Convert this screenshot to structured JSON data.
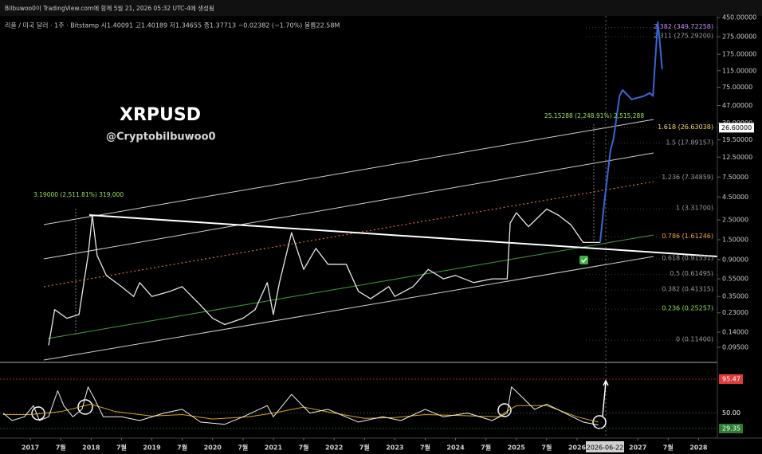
{
  "header": {
    "credit": "Bilbuwoo0이 TradingView.com에 함께 5월 21, 2026 05:32 UTC-4에 생성됨",
    "symbol_info": "리플 / 미국 달러 · 1주 · Bitstamp  시1.40091  고1.40189  저1.34655  종1.37713  −0.02382 (−1.70%)  볼륨22.58M"
  },
  "chart_data": {
    "type": "line",
    "title": "XRPUSD",
    "subtitle": "@Cryptobilbuwoo0",
    "log_scale": true,
    "xlim": [
      2016.5,
      2028.31
    ],
    "ylim": [
      0.0644,
      469
    ],
    "yticks": [
      {
        "value": 450,
        "label": "450.00000"
      },
      {
        "value": 275,
        "label": "275.00000"
      },
      {
        "value": 175,
        "label": "175.00000"
      },
      {
        "value": 115,
        "label": "115.00000"
      },
      {
        "value": 75,
        "label": "75.00000"
      },
      {
        "value": 47,
        "label": "47.00000"
      },
      {
        "value": 30,
        "label": "30.00000"
      },
      {
        "value": 19.5,
        "label": "19.50000"
      },
      {
        "value": 12.5,
        "label": "12.50000"
      },
      {
        "value": 7.5,
        "label": "7.50000"
      },
      {
        "value": 4.5,
        "label": "4.50000"
      },
      {
        "value": 2.5,
        "label": "2.50000"
      },
      {
        "value": 1.5,
        "label": "1.50000"
      },
      {
        "value": 0.9,
        "label": "0.90000"
      },
      {
        "value": 0.55,
        "label": "0.55000"
      },
      {
        "value": 0.35,
        "label": "0.35000"
      },
      {
        "value": 0.23,
        "label": "0.23000"
      },
      {
        "value": 0.14,
        "label": "0.14000"
      },
      {
        "value": 0.095,
        "label": "0.09500"
      }
    ],
    "xticks": [
      {
        "value": 2017,
        "label": "2017"
      },
      {
        "value": 2017.5,
        "label": "7월"
      },
      {
        "value": 2018,
        "label": "2018"
      },
      {
        "value": 2018.5,
        "label": "7월"
      },
      {
        "value": 2019,
        "label": "2019"
      },
      {
        "value": 2019.5,
        "label": "7월"
      },
      {
        "value": 2020,
        "label": "2020"
      },
      {
        "value": 2020.5,
        "label": "7월"
      },
      {
        "value": 2021,
        "label": "2021"
      },
      {
        "value": 2021.5,
        "label": "7월"
      },
      {
        "value": 2022,
        "label": "2022"
      },
      {
        "value": 2022.5,
        "label": "7월"
      },
      {
        "value": 2023,
        "label": "2023"
      },
      {
        "value": 2023.5,
        "label": "7월"
      },
      {
        "value": 2024,
        "label": "2024"
      },
      {
        "value": 2024.5,
        "label": "7월"
      },
      {
        "value": 2025,
        "label": "2025"
      },
      {
        "value": 2025.5,
        "label": "7월"
      },
      {
        "value": 2026,
        "label": "2026"
      },
      {
        "value": 2027,
        "label": "2027"
      },
      {
        "value": 2027.5,
        "label": "7월"
      },
      {
        "value": 2028,
        "label": "2028"
      }
    ],
    "series": [
      {
        "color": "#e6e6e6",
        "x": [
          2017.3,
          2017.4,
          2017.6,
          2017.8,
          2017.95,
          2018.02,
          2018.1,
          2018.25,
          2018.5,
          2018.7,
          2018.8,
          2019.0,
          2019.3,
          2019.5,
          2019.8,
          2020.0,
          2020.2,
          2020.5,
          2020.7,
          2020.9,
          2021.0,
          2021.1,
          2021.3,
          2021.5,
          2021.7,
          2021.9,
          2022.2,
          2022.4,
          2022.6,
          2022.9,
          2023.0,
          2023.3,
          2023.55,
          2023.8,
          2024.0,
          2024.3,
          2024.6,
          2024.85,
          2024.9,
          2025.0,
          2025.2,
          2025.5,
          2025.7,
          2025.9,
          2026.1,
          2026.38
        ],
        "values": [
          0.1,
          0.25,
          0.2,
          0.22,
          1.0,
          2.8,
          1.0,
          0.6,
          0.45,
          0.35,
          0.5,
          0.35,
          0.4,
          0.45,
          0.28,
          0.2,
          0.17,
          0.2,
          0.25,
          0.5,
          0.22,
          0.5,
          1.8,
          0.7,
          1.2,
          0.8,
          0.8,
          0.4,
          0.33,
          0.45,
          0.35,
          0.45,
          0.7,
          0.55,
          0.6,
          0.5,
          0.55,
          0.55,
          2.3,
          3.0,
          2.1,
          3.3,
          2.8,
          2.2,
          1.4,
          1.4
        ]
      },
      {
        "color": "#3a66d6",
        "x": [
          2026.38,
          2026.45,
          2026.55,
          2026.6,
          2026.7,
          2026.75,
          2026.9,
          2027.1,
          2027.2,
          2027.25,
          2027.3,
          2027.33,
          2027.36,
          2027.4
        ],
        "values": [
          1.4,
          4,
          15,
          20,
          60,
          70,
          55,
          60,
          65,
          60,
          200,
          400,
          250,
          120
        ]
      }
    ],
    "fib_levels": [
      {
        "label": "2.382 (349.72258)",
        "value": 349.72258,
        "color": "#c58af5"
      },
      {
        "label": "2.311 (275.29200)",
        "value": 275.292,
        "color": "#9a9a9a"
      },
      {
        "label": "1.618 (26.63038)",
        "value": 26.63038,
        "color": "#f2d36b"
      },
      {
        "label": "1.5 (17.89157)",
        "value": 17.89157,
        "color": "#9a9a9a"
      },
      {
        "label": "1.236 (7.34859)",
        "value": 7.34859,
        "color": "#9a9a9a"
      },
      {
        "label": "1 (3.31700)",
        "value": 3.317,
        "color": "#9a9a9a"
      },
      {
        "label": "0.786 (1.61246)",
        "value": 1.61246,
        "color": "#f0a04b"
      },
      {
        "label": "0.618 (0.91531)",
        "value": 0.91531,
        "color": "#9a9a9a"
      },
      {
        "label": "0.5 (0.61495)",
        "value": 0.61495,
        "color": "#9a9a9a"
      },
      {
        "label": "0.382 (0.41315)",
        "value": 0.41315,
        "color": "#9a9a9a"
      },
      {
        "label": "0.236 (0.25257)",
        "value": 0.25257,
        "color": "#8ee05a"
      },
      {
        "label": "0 (0.11400)",
        "value": 0.114,
        "color": "#9a9a9a"
      }
    ],
    "annotations": [
      "3.19000 (2,511.81%) 319,000",
      "25.15288 (2,248.91%) 2,515,288"
    ],
    "last_price": {
      "value": 26.6,
      "label": "26.60000"
    },
    "crosshair_date": "2026-06-22"
  },
  "rsi": {
    "ylim": [
      21.9,
      112.5
    ],
    "yticks": [
      {
        "value": 95.47,
        "label": "95.47",
        "color": "#e03b3b"
      },
      {
        "value": 50,
        "label": "50.00",
        "color": "#000000"
      },
      {
        "value": 29.35,
        "label": "29.35",
        "color": "#2e7d32"
      }
    ],
    "white": {
      "color": "#f2f2f2",
      "x": [
        2016.55,
        2016.7,
        2016.9,
        2017.05,
        2017.15,
        2017.3,
        2017.45,
        2017.55,
        2017.7,
        2017.85,
        2017.95,
        2018.05,
        2018.2,
        2018.5,
        2018.8,
        2019.2,
        2019.5,
        2019.8,
        2020.2,
        2020.5,
        2020.9,
        2021.0,
        2021.3,
        2021.6,
        2021.9,
        2022.4,
        2022.8,
        2023.1,
        2023.5,
        2023.8,
        2024.2,
        2024.6,
        2024.85,
        2024.92,
        2025.05,
        2025.3,
        2025.5,
        2025.8,
        2026.1,
        2026.35
      ],
      "values": [
        50,
        40,
        45,
        60,
        40,
        45,
        80,
        60,
        45,
        55,
        85,
        70,
        45,
        45,
        40,
        50,
        55,
        38,
        35,
        45,
        60,
        45,
        75,
        50,
        55,
        38,
        45,
        40,
        55,
        45,
        50,
        40,
        50,
        85,
        75,
        55,
        62,
        50,
        38,
        34
      ]
    },
    "yellow": {
      "color": "#d9a520",
      "x": [
        2016.55,
        2017.0,
        2017.5,
        2018.0,
        2018.4,
        2019.0,
        2019.5,
        2020.0,
        2020.6,
        2021.0,
        2021.5,
        2022.0,
        2022.5,
        2023.0,
        2023.5,
        2024.0,
        2024.7,
        2025.0,
        2025.5,
        2026.0,
        2026.35
      ],
      "values": [
        48,
        48,
        52,
        62,
        52,
        46,
        48,
        42,
        45,
        50,
        58,
        50,
        43,
        44,
        48,
        47,
        45,
        60,
        60,
        45,
        38
      ]
    }
  }
}
